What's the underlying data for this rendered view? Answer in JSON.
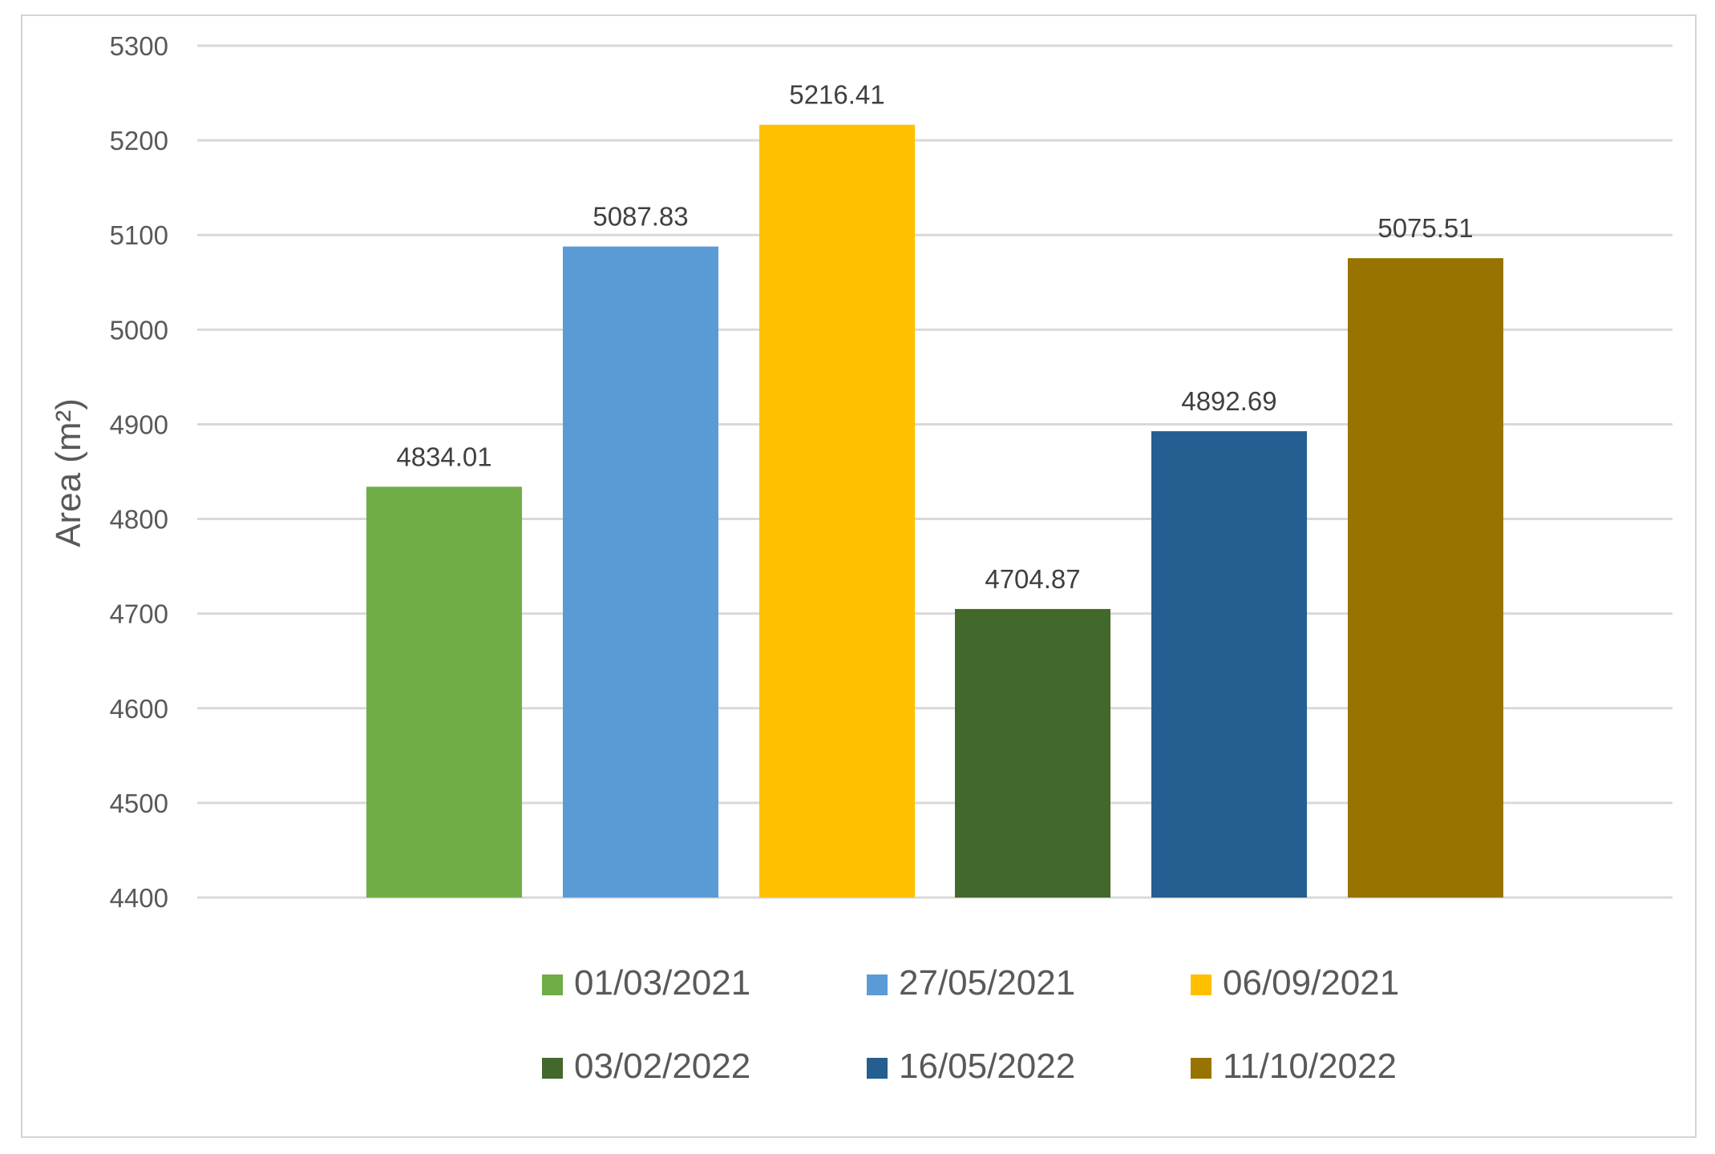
{
  "chart_data": {
    "type": "bar",
    "categories": [
      "01/03/2021",
      "27/05/2021",
      "06/09/2021",
      "03/02/2022",
      "16/05/2022",
      "11/10/2022"
    ],
    "values": [
      4834.01,
      5087.83,
      5216.41,
      4704.87,
      4892.69,
      5075.51
    ],
    "data_labels": [
      "4834.01",
      "5087.83",
      "5216.41",
      "4704.87",
      "4892.69",
      "5075.51"
    ],
    "colors": [
      "#70AD47",
      "#5B9BD5",
      "#FFC000",
      "#43682B",
      "#255E91",
      "#997300"
    ],
    "title": "",
    "xlabel": "",
    "ylabel": "Area (m²)",
    "ylim": [
      4400,
      5300
    ],
    "yticks": [
      4400,
      4500,
      4600,
      4700,
      4800,
      4900,
      5000,
      5100,
      5200,
      5300
    ],
    "grid": true,
    "legend_position": "bottom"
  }
}
